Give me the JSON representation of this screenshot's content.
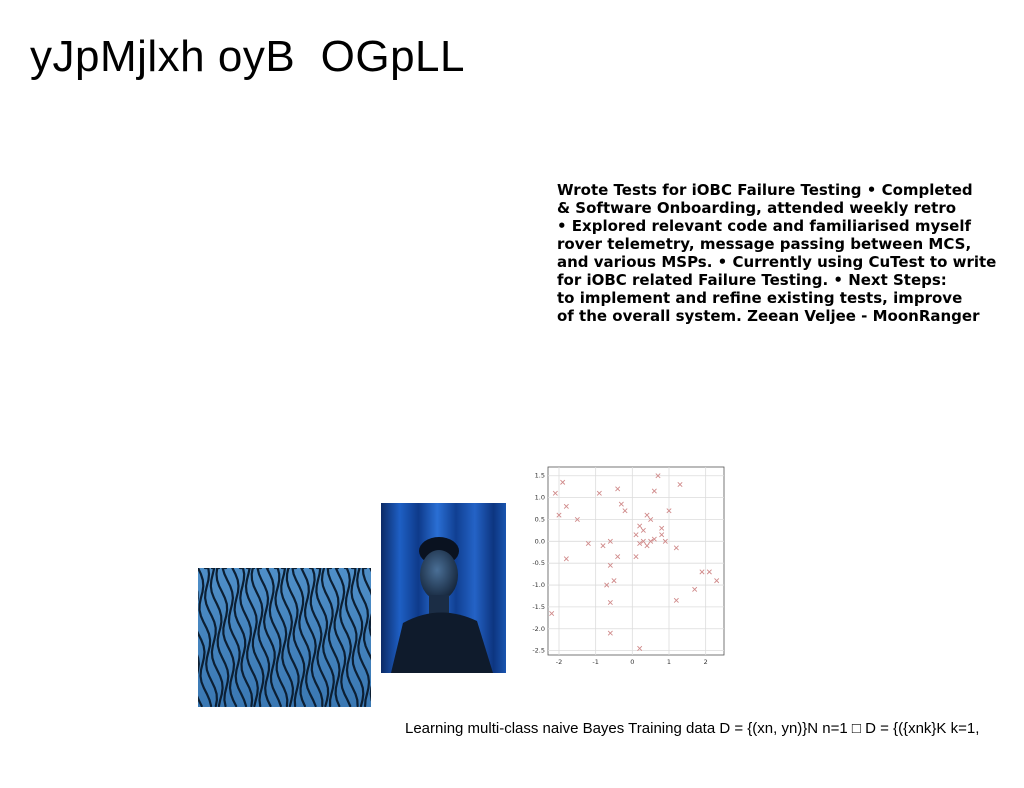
{
  "title": "yJpMjlxh oyB  OGpLL",
  "paragraph_lines": [
    "Wrote Tests for iOBC Failure Testing • Completed",
    "& Software Onboarding, attended weekly retro",
    "• Explored relevant code and familiarised myself",
    "rover telemetry, message passing between MCS,",
    "and various MSPs. • Currently using CuTest to write",
    "for iOBC related Failure Testing. • Next Steps:",
    "to implement and refine existing tests, improve",
    "of the overall system. Zeean Veljee - MoonRanger"
  ],
  "caption": "Learning multi-class naive Bayes Training data D = {(xn, yn)}N n=1 □ D = {({xnk}K k=1,",
  "images": {
    "sand": "sand-dunes-photo",
    "portrait": "portrait-photo-blue-curtain"
  },
  "chart_data": {
    "type": "scatter",
    "marker": "x",
    "marker_color": "#d08a8a",
    "grid": true,
    "xlim": [
      -2.3,
      2.5
    ],
    "ylim": [
      -2.6,
      1.7
    ],
    "x_ticks": [
      -2,
      -1,
      0,
      1,
      2
    ],
    "x_tick_labels": [
      "-2",
      "-1",
      "0",
      "1",
      "2"
    ],
    "y_ticks": [
      1.5,
      1.0,
      0.5,
      0.0,
      -0.5,
      -1.0,
      -1.5,
      -2.0,
      -2.5
    ],
    "y_tick_labels": [
      "1.5",
      "1.0",
      "0.5",
      "0.0",
      "-0.5",
      "-1.0",
      "-1.5",
      "-2.0",
      "-2.5"
    ],
    "points": [
      [
        -2.1,
        1.1
      ],
      [
        -1.9,
        1.35
      ],
      [
        -2.0,
        0.6
      ],
      [
        -1.8,
        0.8
      ],
      [
        -1.5,
        0.5
      ],
      [
        -1.8,
        -0.4
      ],
      [
        -1.2,
        -0.05
      ],
      [
        -2.2,
        -1.65
      ],
      [
        -0.9,
        1.1
      ],
      [
        -0.6,
        0.0
      ],
      [
        -0.8,
        -0.1
      ],
      [
        -0.4,
        1.2
      ],
      [
        -0.3,
        0.85
      ],
      [
        -0.2,
        0.7
      ],
      [
        -0.6,
        -0.55
      ],
      [
        -0.4,
        -0.35
      ],
      [
        -0.7,
        -1.0
      ],
      [
        -0.5,
        -0.9
      ],
      [
        -0.6,
        -1.4
      ],
      [
        -0.6,
        -2.1
      ],
      [
        0.1,
        -0.35
      ],
      [
        0.2,
        0.35
      ],
      [
        0.3,
        0.25
      ],
      [
        0.4,
        0.6
      ],
      [
        0.5,
        0.5
      ],
      [
        0.1,
        0.15
      ],
      [
        0.2,
        -0.05
      ],
      [
        0.4,
        -0.1
      ],
      [
        0.5,
        0.0
      ],
      [
        0.6,
        0.05
      ],
      [
        0.3,
        0.0
      ],
      [
        0.8,
        0.3
      ],
      [
        0.8,
        0.15
      ],
      [
        0.9,
        0.0
      ],
      [
        0.7,
        1.5
      ],
      [
        0.6,
        1.15
      ],
      [
        1.3,
        1.3
      ],
      [
        1.0,
        0.7
      ],
      [
        1.2,
        -0.15
      ],
      [
        1.2,
        -1.35
      ],
      [
        1.7,
        -1.1
      ],
      [
        1.9,
        -0.7
      ],
      [
        2.1,
        -0.7
      ],
      [
        2.3,
        -0.9
      ],
      [
        0.2,
        -2.45
      ]
    ]
  }
}
